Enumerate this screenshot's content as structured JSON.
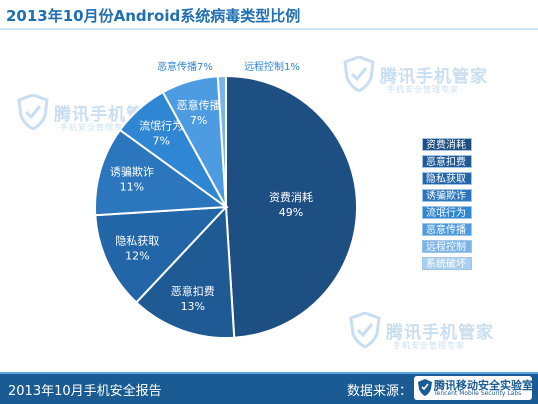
{
  "header": {
    "title": "2013年10月份Android系统病毒类型比例"
  },
  "watermark": {
    "text": "腾讯手机管家",
    "tagline": "手机安全管理专家"
  },
  "chart_data": {
    "type": "pie",
    "slices": [
      {
        "label": "资费消耗",
        "value": 49,
        "value_label": "49%",
        "color": "#1d4f82"
      },
      {
        "label": "恶意扣费",
        "value": 13,
        "value_label": "13%",
        "color": "#1f5a95"
      },
      {
        "label": "隐私获取",
        "value": 12,
        "value_label": "12%",
        "color": "#2366a8"
      },
      {
        "label": "诱骗欺诈",
        "value": 11,
        "value_label": "11%",
        "color": "#2b76bd"
      },
      {
        "label": "流氓行为",
        "value": 7,
        "value_label": "7%",
        "color": "#2f86d2"
      },
      {
        "label": "恶意传播",
        "value": 7,
        "value_label": "7%",
        "color": "#4d9be0"
      },
      {
        "label": "远程控制",
        "value": 1,
        "value_label": "1%",
        "color": "#79b4ea"
      },
      {
        "label": "系统破坏",
        "value": 0,
        "value_label": "",
        "color": "#a9cff2"
      }
    ],
    "legend_position": "right"
  },
  "footer": {
    "report": "2013年10月手机安全报告",
    "source_label": "数据来源：",
    "lab_name": "腾讯移动安全实验室",
    "lab_sub": "Tencent Mobile Security Labs"
  },
  "colors": {
    "footer_bg": "#1b5b93",
    "title": "#1f6fb2",
    "watermark": "#c9dff1"
  }
}
